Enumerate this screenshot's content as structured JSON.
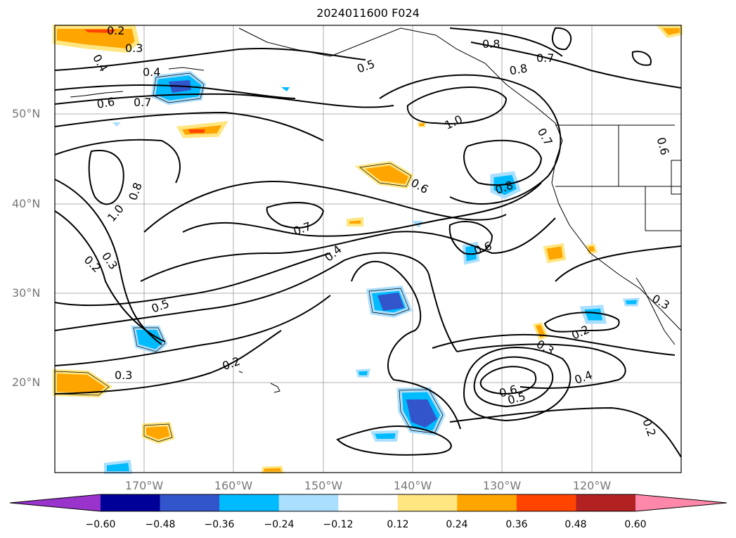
{
  "title": "2024011600 F024",
  "map": {
    "lat_labels": [
      "50°N",
      "40°N",
      "30°N",
      "20°N"
    ],
    "lon_labels": [
      "170°W",
      "160°W",
      "150°W",
      "140°W",
      "130°W",
      "120°W"
    ],
    "contour_labels": [
      "0.2",
      "0.3",
      "0.4",
      "0.4",
      "0.5",
      "0.6",
      "0.7",
      "0.8",
      "0.7",
      "0.8",
      "1.0",
      "0.7",
      "0.6",
      "0.6",
      "0.8",
      "0.8",
      "1.0",
      "0.7",
      "0.4",
      "0.6",
      "0.5",
      "0.2",
      "0.3",
      "0.3",
      "0.2",
      "0.2",
      "0.3",
      "0.4",
      "0.6",
      "0.5",
      "0.3",
      "0.2"
    ]
  },
  "colorbar": {
    "ticks": [
      "−0.60",
      "−0.48",
      "−0.36",
      "−0.24",
      "−0.12",
      "0.12",
      "0.24",
      "0.36",
      "0.48",
      "0.60"
    ],
    "colors": [
      "#9933cc",
      "#000099",
      "#3355cc",
      "#00bbff",
      "#aadfff",
      "#ffffff",
      "#ffe680",
      "#ffa500",
      "#ff4400",
      "#b22222",
      "#ff88aa"
    ]
  }
}
